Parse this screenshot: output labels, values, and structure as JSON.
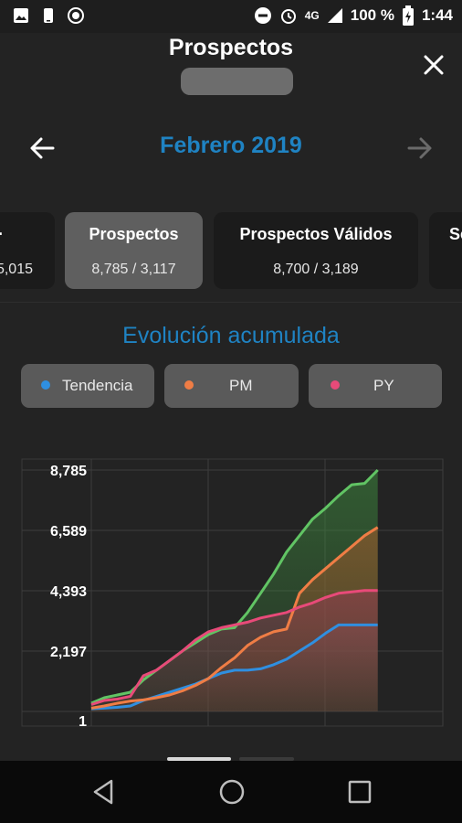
{
  "status_bar": {
    "wifi_label": "4G",
    "battery_text": "100 %",
    "time": "1:44"
  },
  "header": {
    "title": "Prospectos"
  },
  "month_nav": {
    "label": "Febrero 2019"
  },
  "cards": [
    {
      "title": "·",
      "value": "5,015"
    },
    {
      "title": "Prospectos",
      "value": "8,785 / 3,117"
    },
    {
      "title": "Prospectos Válidos",
      "value": "8,700 / 3,189"
    },
    {
      "title": "Se",
      "value": ""
    }
  ],
  "section": {
    "title": "Evolución acumulada"
  },
  "legend": [
    {
      "label": "Tendencia",
      "color": "#2f8fe0"
    },
    {
      "label": "PM",
      "color": "#ef7d45"
    },
    {
      "label": "PY",
      "color": "#e84a79"
    }
  ],
  "chart_data": {
    "type": "area",
    "y_ticks": [
      "8,785",
      "6,589",
      "4,393",
      "2,197",
      "1"
    ],
    "ylim": [
      1,
      8785
    ],
    "x": [
      1,
      2,
      3,
      4,
      5,
      6,
      7,
      8,
      9,
      10,
      11,
      12,
      13,
      14,
      15,
      16,
      17,
      18,
      19,
      20,
      21,
      22,
      23,
      24,
      25,
      26,
      27,
      28
    ],
    "series": [
      {
        "color": "#61c464",
        "values": [
          300,
          500,
          600,
          700,
          1150,
          1500,
          1850,
          2200,
          2500,
          2800,
          3000,
          3050,
          3600,
          4300,
          5000,
          5800,
          6400,
          7000,
          7400,
          7850,
          8250,
          8300,
          8785,
          null,
          null,
          null,
          null,
          null
        ]
      },
      {
        "color": "#2f8fe0",
        "values": [
          100,
          120,
          150,
          200,
          400,
          550,
          700,
          850,
          1000,
          1200,
          1400,
          1500,
          1500,
          1550,
          1700,
          1900,
          2200,
          2500,
          2850,
          3150,
          3150,
          3150,
          3150,
          null,
          null,
          null,
          null,
          null
        ]
      },
      {
        "color": "#ef7d45",
        "values": [
          120,
          200,
          300,
          380,
          420,
          500,
          600,
          750,
          950,
          1200,
          1600,
          1950,
          2400,
          2700,
          2900,
          3000,
          4300,
          4800,
          5200,
          5600,
          6000,
          6400,
          6700,
          null,
          null,
          null,
          null,
          null
        ]
      },
      {
        "color": "#e84a79",
        "values": [
          250,
          400,
          450,
          550,
          1300,
          1500,
          1850,
          2200,
          2600,
          2900,
          3050,
          3150,
          3250,
          3400,
          3500,
          3600,
          3800,
          3950,
          4150,
          4300,
          4350,
          4400,
          4400,
          null,
          null,
          null,
          null,
          null
        ]
      }
    ]
  }
}
